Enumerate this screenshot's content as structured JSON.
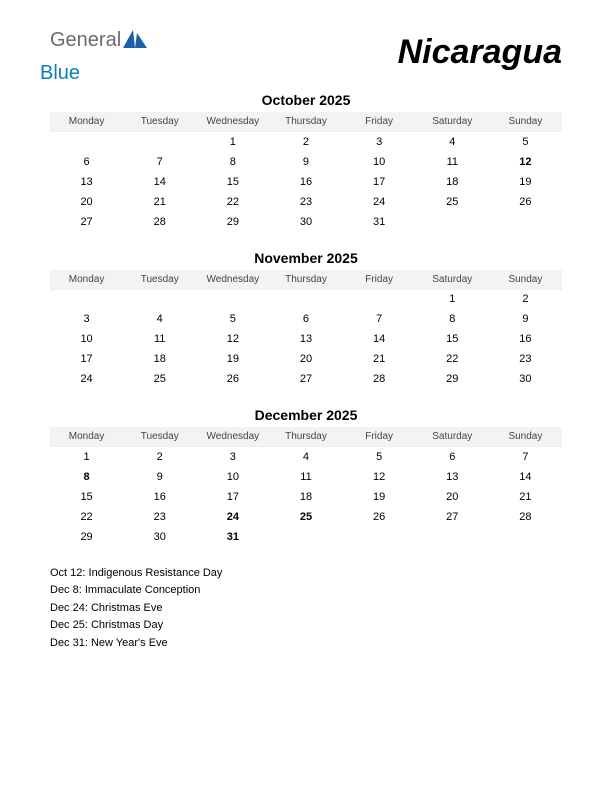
{
  "logo": {
    "general": "General",
    "blue": "Blue"
  },
  "country": "Nicaragua",
  "weekdays": [
    "Monday",
    "Tuesday",
    "Wednesday",
    "Thursday",
    "Friday",
    "Saturday",
    "Sunday"
  ],
  "colors": {
    "background": "#ffffff",
    "text": "#000000",
    "header_bg": "#f3f3f3",
    "holiday_text": "#cc0000",
    "logo_gray": "#6b6b6b",
    "logo_blue": "#0b7fbf",
    "logo_triangle": "#1b5fa6"
  },
  "typography": {
    "country_fontsize": 34,
    "month_title_fontsize": 14,
    "weekday_fontsize": 10,
    "day_fontsize": 11,
    "holiday_list_fontsize": 11
  },
  "months": [
    {
      "title": "October 2025",
      "weeks": [
        [
          {
            "d": ""
          },
          {
            "d": ""
          },
          {
            "d": "1"
          },
          {
            "d": "2"
          },
          {
            "d": "3"
          },
          {
            "d": "4"
          },
          {
            "d": "5"
          }
        ],
        [
          {
            "d": "6"
          },
          {
            "d": "7"
          },
          {
            "d": "8"
          },
          {
            "d": "9"
          },
          {
            "d": "10"
          },
          {
            "d": "11"
          },
          {
            "d": "12",
            "h": true
          }
        ],
        [
          {
            "d": "13"
          },
          {
            "d": "14"
          },
          {
            "d": "15"
          },
          {
            "d": "16"
          },
          {
            "d": "17"
          },
          {
            "d": "18"
          },
          {
            "d": "19"
          }
        ],
        [
          {
            "d": "20"
          },
          {
            "d": "21"
          },
          {
            "d": "22"
          },
          {
            "d": "23"
          },
          {
            "d": "24"
          },
          {
            "d": "25"
          },
          {
            "d": "26"
          }
        ],
        [
          {
            "d": "27"
          },
          {
            "d": "28"
          },
          {
            "d": "29"
          },
          {
            "d": "30"
          },
          {
            "d": "31"
          },
          {
            "d": ""
          },
          {
            "d": ""
          }
        ]
      ]
    },
    {
      "title": "November 2025",
      "weeks": [
        [
          {
            "d": ""
          },
          {
            "d": ""
          },
          {
            "d": ""
          },
          {
            "d": ""
          },
          {
            "d": ""
          },
          {
            "d": "1"
          },
          {
            "d": "2"
          }
        ],
        [
          {
            "d": "3"
          },
          {
            "d": "4"
          },
          {
            "d": "5"
          },
          {
            "d": "6"
          },
          {
            "d": "7"
          },
          {
            "d": "8"
          },
          {
            "d": "9"
          }
        ],
        [
          {
            "d": "10"
          },
          {
            "d": "11"
          },
          {
            "d": "12"
          },
          {
            "d": "13"
          },
          {
            "d": "14"
          },
          {
            "d": "15"
          },
          {
            "d": "16"
          }
        ],
        [
          {
            "d": "17"
          },
          {
            "d": "18"
          },
          {
            "d": "19"
          },
          {
            "d": "20"
          },
          {
            "d": "21"
          },
          {
            "d": "22"
          },
          {
            "d": "23"
          }
        ],
        [
          {
            "d": "24"
          },
          {
            "d": "25"
          },
          {
            "d": "26"
          },
          {
            "d": "27"
          },
          {
            "d": "28"
          },
          {
            "d": "29"
          },
          {
            "d": "30"
          }
        ]
      ]
    },
    {
      "title": "December 2025",
      "weeks": [
        [
          {
            "d": "1"
          },
          {
            "d": "2"
          },
          {
            "d": "3"
          },
          {
            "d": "4"
          },
          {
            "d": "5"
          },
          {
            "d": "6"
          },
          {
            "d": "7"
          }
        ],
        [
          {
            "d": "8",
            "h": true
          },
          {
            "d": "9"
          },
          {
            "d": "10"
          },
          {
            "d": "11"
          },
          {
            "d": "12"
          },
          {
            "d": "13"
          },
          {
            "d": "14"
          }
        ],
        [
          {
            "d": "15"
          },
          {
            "d": "16"
          },
          {
            "d": "17"
          },
          {
            "d": "18"
          },
          {
            "d": "19"
          },
          {
            "d": "20"
          },
          {
            "d": "21"
          }
        ],
        [
          {
            "d": "22"
          },
          {
            "d": "23"
          },
          {
            "d": "24",
            "h": true
          },
          {
            "d": "25",
            "h": true
          },
          {
            "d": "26"
          },
          {
            "d": "27"
          },
          {
            "d": "28"
          }
        ],
        [
          {
            "d": "29"
          },
          {
            "d": "30"
          },
          {
            "d": "31",
            "h": true
          },
          {
            "d": ""
          },
          {
            "d": ""
          },
          {
            "d": ""
          },
          {
            "d": ""
          }
        ]
      ]
    }
  ],
  "holidays": [
    "Oct 12: Indigenous Resistance Day",
    "Dec 8: Immaculate Conception",
    "Dec 24: Christmas Eve",
    "Dec 25: Christmas Day",
    "Dec 31: New Year's Eve"
  ]
}
